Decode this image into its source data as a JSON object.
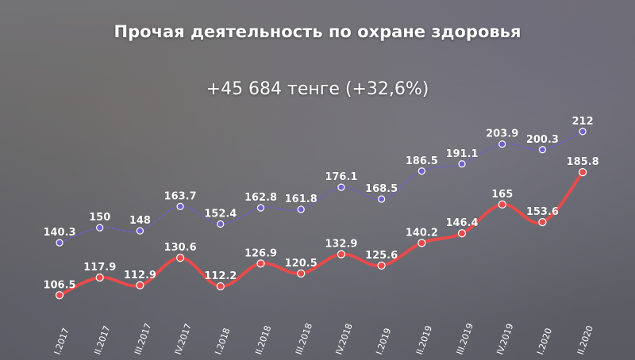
{
  "chart_data": {
    "type": "line",
    "title": "Прочая деятельность по охране здоровья",
    "subtitle": "+45 684 тенге (+32,6%)",
    "categories": [
      "I.2017",
      "II.2017",
      "III.2017",
      "IV.2017",
      "I.2018",
      "II.2018",
      "III.2018",
      "IV.2018",
      "I.2019",
      "II.2019",
      "III.2019",
      "IV.2019",
      "I.2020",
      "II.2020"
    ],
    "series": [
      {
        "color": "#6f5fcf",
        "style": "dashed",
        "values": [
          140.3,
          150,
          148,
          163.7,
          152.4,
          162.8,
          161.8,
          176.1,
          168.5,
          186.5,
          191.1,
          203.9,
          200.3,
          212
        ],
        "labels": [
          "140.3",
          "150",
          "148",
          "163.7",
          "152.4",
          "162.8",
          "161.8",
          "176.1",
          "168.5",
          "186.5",
          "191.1",
          "203.9",
          "200.3",
          "212"
        ]
      },
      {
        "color": "#e84b4b",
        "style": "solid",
        "values": [
          106.5,
          117.9,
          112.9,
          130.6,
          112.2,
          126.9,
          120.5,
          132.9,
          125.6,
          140.2,
          146.4,
          165,
          153.6,
          185.8
        ],
        "labels": [
          "106.5",
          "117.9",
          "112.9",
          "130.6",
          "112.2",
          "126.9",
          "120.5",
          "132.9",
          "125.6",
          "140.2",
          "146.4",
          "165",
          "153.6",
          "185.8"
        ]
      }
    ],
    "ylim": [
      100,
      215
    ],
    "grid": false,
    "legend": "none"
  }
}
